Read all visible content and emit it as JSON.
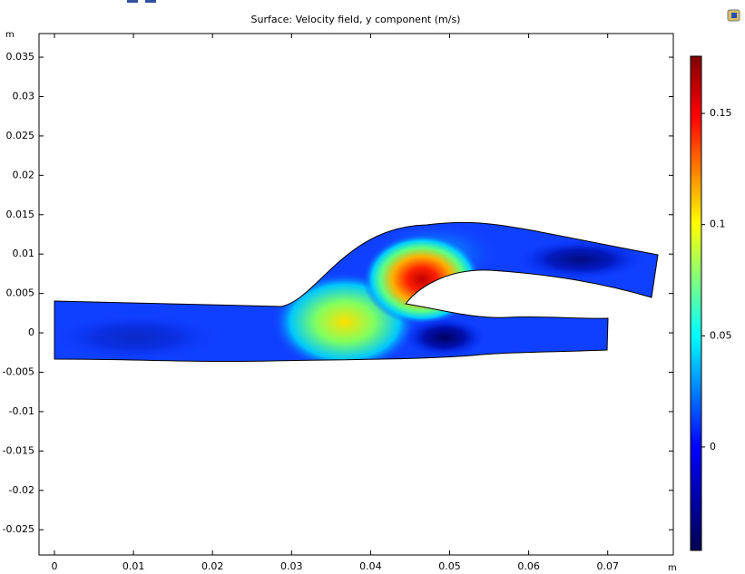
{
  "chart_data": {
    "type": "surface",
    "title": "Surface: Velocity field, y component (m/s)",
    "x_label": "m",
    "y_label": "m",
    "xlim": [
      -0.00195,
      0.0783
    ],
    "xticks": [
      0,
      0.01,
      0.02,
      0.03,
      0.04,
      0.05,
      0.06,
      0.07
    ],
    "ylim": [
      -0.0282,
      0.038
    ],
    "yticks": [
      -0.025,
      -0.02,
      -0.015,
      -0.01,
      -0.005,
      0,
      0.005,
      0.01,
      0.015,
      0.02,
      0.025,
      0.03,
      0.035
    ],
    "colorlim": [
      -0.0465,
      0.1757
    ],
    "colorticks": [
      0,
      0.05,
      0.1,
      0.15
    ]
  }
}
